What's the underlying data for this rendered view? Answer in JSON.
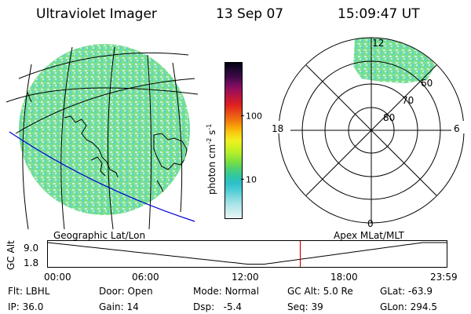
{
  "header": {
    "instrument": "Ultraviolet Imager",
    "date": "13 Sep 07",
    "time": "15:09:47 UT"
  },
  "colorbar": {
    "label": "photon cm",
    "unit_sup1": "-2",
    "unit_mid": "s",
    "unit_sup2": "-1",
    "ticks": [
      {
        "label": "100",
        "value": 100
      },
      {
        "label": "10",
        "value": 10
      }
    ],
    "colors": [
      "#eaf6f6",
      "#c8ecee",
      "#a8e4e8",
      "#7cd8de",
      "#4cccd4",
      "#2cc0c8",
      "#30c8a0",
      "#50d070",
      "#78e040",
      "#a8ec30",
      "#d0f020",
      "#f0f020",
      "#f8d010",
      "#f8a008",
      "#f07010",
      "#e84818",
      "#e02020",
      "#c01838",
      "#a01058",
      "#700c60",
      "#400848",
      "#200830",
      "#000010"
    ]
  },
  "geo_map": {
    "label": "Geographic Lat/Lon",
    "colors": {
      "speckle_a": "#7ee08a",
      "speckle_b": "#5ed6c8",
      "speckle_c": "#c8eeee",
      "orbit": "#0000cc"
    }
  },
  "polar_plot": {
    "label": "Apex MLat/MLT",
    "mlt_labels": [
      "12",
      "18",
      "6",
      "0"
    ],
    "mlat_labels": [
      "60",
      "70",
      "80"
    ]
  },
  "timeline": {
    "axis_label": "GC Alt",
    "y_ticks": [
      "9.0",
      "1.8"
    ],
    "x_ticks": [
      "00:00",
      "06:00",
      "12:00",
      "18:00",
      "23:59"
    ],
    "marker_hour": 15.16,
    "marker_color": "#dd0000"
  },
  "footer": {
    "filter_label": "Flt:",
    "filter_value": "LBHL",
    "ip_label": "IP:",
    "ip_value": "36.0",
    "door_label": "Door:",
    "door_value": "Open",
    "gain_label": "Gain:",
    "gain_value": "14",
    "mode_label": "Mode:",
    "mode_value": "Normal",
    "dsp_label": "Dsp:",
    "dsp_value": "-5.4",
    "gcalt_label": "GC Alt:",
    "gcalt_value": "5.0 Re",
    "seq_label": "Seq:",
    "seq_value": "39",
    "glat_label": "GLat:",
    "glat_value": "-63.9",
    "glon_label": "GLon:",
    "glon_value": "294.5"
  }
}
